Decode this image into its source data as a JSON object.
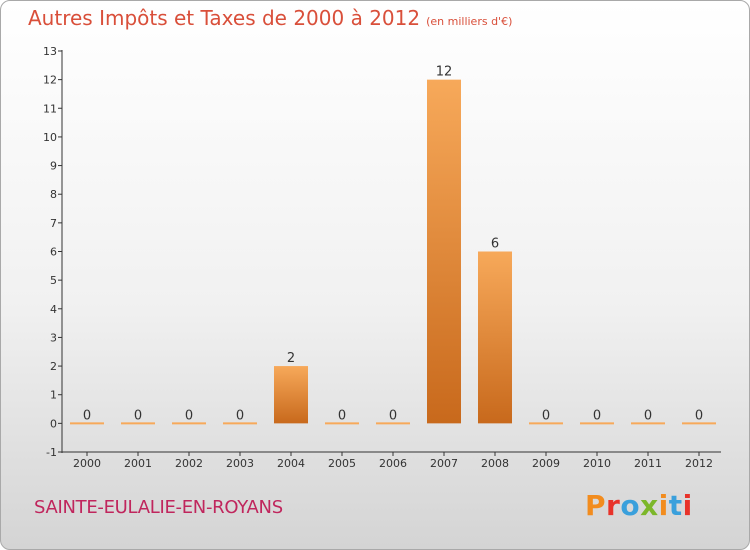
{
  "title": "Autres Impôts et Taxes de 2000 à 2012",
  "unit": "(en milliers d'€)",
  "commune": "SAINTE-EULALIE-EN-ROYANS",
  "logo": {
    "letters": [
      "P",
      "r",
      "o",
      "x",
      "i",
      "t",
      "i"
    ],
    "colors": [
      "#f28c1e",
      "#e8332a",
      "#3aa0dc",
      "#7cb72a",
      "#f28c1e",
      "#3aa0dc",
      "#e8332a"
    ]
  },
  "colors": {
    "bar_top": "#f7a95a",
    "bar_bottom": "#c8691c",
    "title": "#d94f3a",
    "commune": "#c0265d"
  },
  "chart_data": {
    "type": "bar",
    "categories": [
      "2000",
      "2001",
      "2002",
      "2003",
      "2004",
      "2005",
      "2006",
      "2007",
      "2008",
      "2009",
      "2010",
      "2011",
      "2012"
    ],
    "values": [
      0,
      0,
      0,
      0,
      2,
      0,
      0,
      12,
      6,
      0,
      0,
      0,
      0
    ],
    "ylim": [
      -1,
      13
    ],
    "yticks": [
      -1,
      0,
      1,
      2,
      3,
      4,
      5,
      6,
      7,
      8,
      9,
      10,
      11,
      12,
      13
    ],
    "grid": false
  }
}
